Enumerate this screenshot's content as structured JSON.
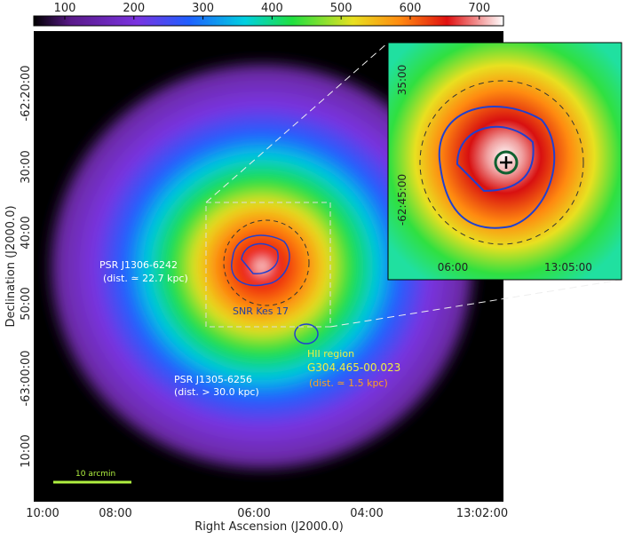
{
  "colorbar": {
    "clim": [
      55,
      735
    ],
    "ticks": [
      100,
      200,
      300,
      400,
      500,
      600,
      700
    ]
  },
  "image": {
    "x_label": "Right Ascension (J2000.0)",
    "y_label": "Declination (J2000.0)",
    "x_ticks": [
      "10:00",
      "08:00",
      "06:00",
      "04:00",
      "13:02:00"
    ],
    "y_ticks": [
      "-62:20:00",
      "30:00",
      "40:00",
      "50:00",
      "-63:00:00",
      "10:00"
    ]
  },
  "inset": {
    "x_ticks": [
      "06:00",
      "13:05:00"
    ],
    "y_ticks": [
      "35:00",
      "-62:45:00"
    ]
  },
  "annotations": {
    "psr1": "PSR J1306-6242",
    "psr1_dist": "(dist. ≃ 22.7 kpc)",
    "snr": "SNR Kes 17",
    "hii": "HII region",
    "hii_name": "G304.465-00.023",
    "hii_dist": "(dist. ≃ 1.5 kpc)",
    "psr2": "PSR J1305-6256",
    "psr2_dist": "(dist. > 30.0 kpc)",
    "scale": "10 arcmin"
  }
}
